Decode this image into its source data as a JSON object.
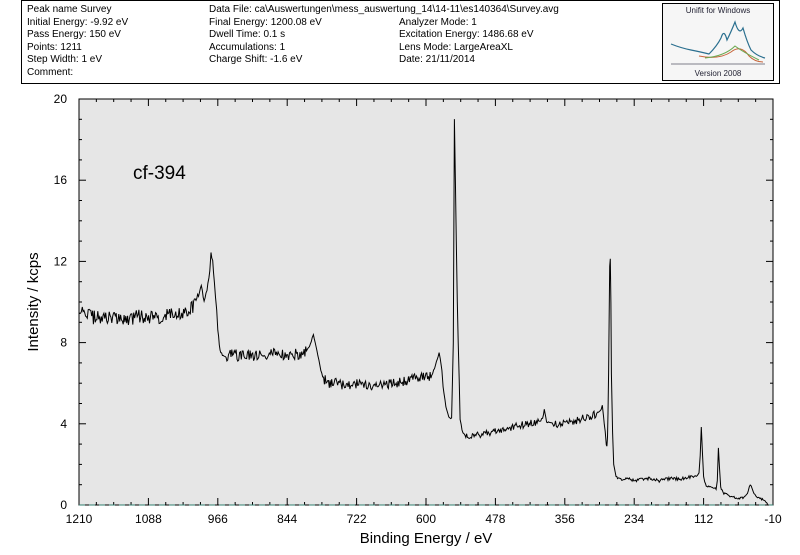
{
  "header": {
    "col1": [
      "Peak name Survey",
      "Initial Energy: -9.92 eV",
      "Pass Energy:  150 eV",
      "Points:  1211",
      "Step Width:  1 eV",
      "Comment:"
    ],
    "col2": [
      "Data File: ca\\Auswertungen\\mess_auswertung_14\\14-11\\es140364\\Survey.avg",
      "Final Energy:  1200.08 eV",
      "Dwell Time:  0.1 s",
      "Accumulations:  1",
      "Charge Shift: -1.6 eV"
    ],
    "col3": [
      "",
      "Analyzer Mode:  1",
      "Excitation Energy:  1486.68 eV",
      "Lens Mode: LargeAreaXL",
      "Date: 21/11/2014"
    ],
    "logo_title": "Unifit for Windows",
    "logo_version": "Version 2008"
  },
  "chart_data": {
    "type": "line",
    "title": "",
    "annotation": "cf-394",
    "xlabel": "Binding Energy / eV",
    "ylabel": "Intensity / kcps",
    "x_reversed": true,
    "xlim": [
      1210,
      -10
    ],
    "ylim": [
      0,
      20
    ],
    "x_ticks": [
      1210,
      1088,
      966,
      844,
      722,
      600,
      478,
      356,
      234,
      112,
      -10
    ],
    "y_ticks": [
      0,
      4,
      8,
      12,
      16,
      20
    ],
    "background_color": "#e6e6e6",
    "line_color": "#000000",
    "baseline": {
      "y": 0,
      "style": "dashed",
      "color": "#2f7f6f"
    },
    "series": [
      {
        "x": [
          1210,
          1200,
          1180,
          1160,
          1140,
          1120,
          1100,
          1080,
          1060,
          1040,
          1020,
          1010,
          1000,
          995,
          990,
          985,
          980,
          978,
          975,
          972,
          970,
          968,
          966,
          962,
          958,
          955,
          950,
          940,
          920,
          900,
          880,
          860,
          840,
          820,
          810,
          805,
          800,
          798,
          795,
          790,
          785,
          780,
          770,
          760,
          740,
          720,
          700,
          680,
          660,
          640,
          620,
          600,
          590,
          585,
          580,
          577,
          575,
          572,
          570,
          565,
          560,
          555,
          552,
          550,
          545,
          540,
          535,
          530,
          520,
          500,
          480,
          460,
          440,
          420,
          400,
          395,
          392,
          388,
          380,
          360,
          340,
          320,
          300,
          292,
          290,
          288,
          285,
          283,
          282,
          281,
          280,
          279,
          278,
          277,
          276,
          275,
          274,
          272,
          270,
          266,
          262,
          250,
          230,
          210,
          190,
          170,
          150,
          130,
          125,
          120,
          118,
          116,
          114,
          112,
          110,
          106,
          100,
          95,
          90,
          88,
          86,
          84,
          82,
          78,
          70,
          60,
          50,
          40,
          35,
          30,
          25,
          20,
          10,
          0,
          0
        ],
        "y": [
          9.6,
          9.4,
          9.2,
          9.3,
          9.1,
          9.2,
          9.3,
          9.2,
          9.3,
          9.4,
          9.6,
          9.8,
          10.3,
          10.8,
          10.0,
          10.6,
          11.5,
          12.4,
          12.0,
          11.0,
          10.2,
          9.6,
          8.6,
          7.6,
          7.4,
          7.3,
          7.3,
          7.4,
          7.3,
          7.4,
          7.3,
          7.5,
          7.4,
          7.5,
          7.6,
          7.8,
          8.2,
          8.4,
          8.0,
          7.4,
          6.6,
          6.2,
          6.0,
          6.0,
          5.9,
          6.0,
          5.8,
          5.9,
          6.0,
          6.1,
          6.2,
          6.3,
          6.4,
          6.7,
          7.2,
          7.5,
          7.2,
          6.6,
          5.8,
          4.8,
          4.3,
          4.3,
          8.0,
          19.0,
          10.0,
          4.2,
          3.5,
          3.4,
          3.4,
          3.5,
          3.6,
          3.7,
          3.9,
          4.0,
          4.1,
          4.3,
          4.7,
          4.1,
          4.0,
          4.0,
          4.1,
          4.3,
          4.5,
          4.7,
          4.9,
          4.4,
          3.6,
          3.0,
          2.9,
          3.3,
          4.5,
          6.5,
          9.5,
          11.8,
          12.1,
          10.0,
          6.5,
          3.6,
          2.0,
          1.4,
          1.3,
          1.3,
          1.2,
          1.3,
          1.2,
          1.3,
          1.3,
          1.4,
          1.4,
          1.6,
          2.4,
          3.8,
          2.5,
          1.4,
          1.1,
          0.9,
          0.9,
          0.8,
          0.8,
          1.2,
          2.8,
          1.8,
          0.9,
          0.6,
          0.5,
          0.4,
          0.3,
          0.4,
          0.6,
          1.0,
          0.7,
          0.4,
          0.3,
          0.1,
          0.0
        ]
      }
    ]
  }
}
